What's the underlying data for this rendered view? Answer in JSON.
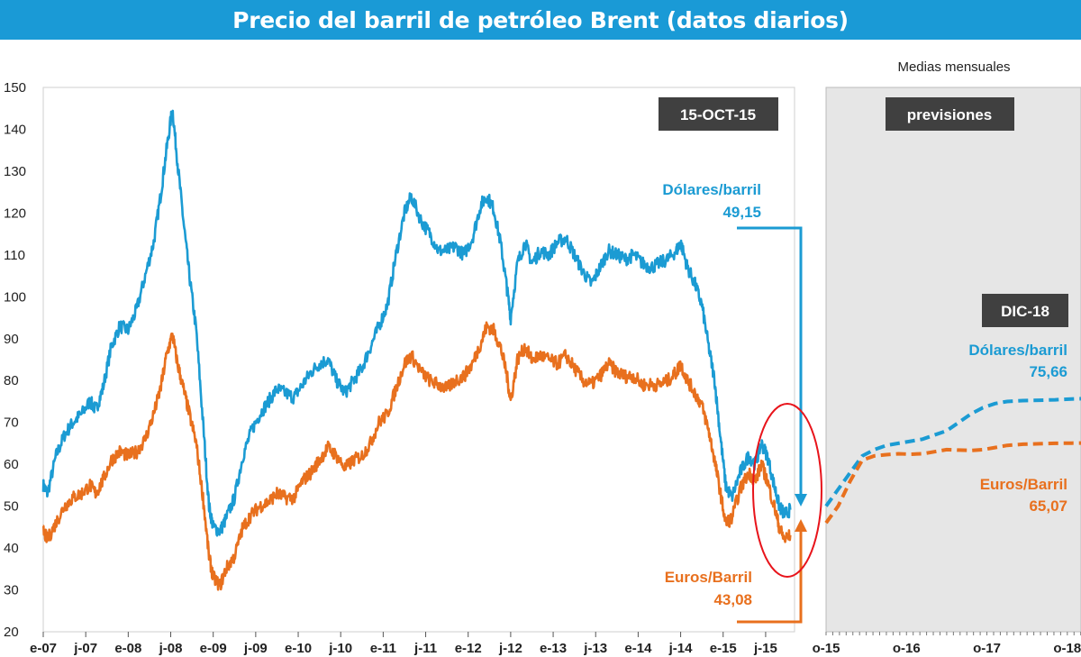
{
  "title": "Precio del barril de petróleo Brent (datos diarios)",
  "subtitle_right": "Medias mensuales",
  "date_badge": "15-OCT-15",
  "forecast_badge": "previsiones",
  "end_badge": "DIC-18",
  "colors": {
    "usd": "#1b9bd3",
    "eur": "#e8701e",
    "title_bg": "#1a9ad6",
    "badge_bg": "#404040",
    "forecast_bg": "#e6e6e6",
    "highlight": "#e8141b"
  },
  "labels": {
    "usd_name": "Dólares/barril",
    "usd_value": "49,15",
    "eur_name": "Euros/Barril",
    "eur_value": "43,08",
    "usd_forecast_name": "Dólares/barril",
    "usd_forecast_value": "75,66",
    "eur_forecast_name": "Euros/Barril",
    "eur_forecast_value": "65,07"
  },
  "chart_data": [
    {
      "type": "line",
      "title": "Precio del barril de petróleo Brent (datos diarios)",
      "ylim": [
        20,
        150
      ],
      "yticks": [
        20,
        30,
        40,
        50,
        60,
        70,
        80,
        90,
        100,
        110,
        120,
        130,
        140,
        150
      ],
      "xlim": [
        2007.0,
        2015.84
      ],
      "xticks": [
        {
          "label": "e-07",
          "x": 2007.0
        },
        {
          "label": "j-07",
          "x": 2007.5
        },
        {
          "label": "e-08",
          "x": 2008.0
        },
        {
          "label": "j-08",
          "x": 2008.5
        },
        {
          "label": "e-09",
          "x": 2009.0
        },
        {
          "label": "j-09",
          "x": 2009.5
        },
        {
          "label": "e-10",
          "x": 2010.0
        },
        {
          "label": "j-10",
          "x": 2010.5
        },
        {
          "label": "e-11",
          "x": 2011.0
        },
        {
          "label": "j-11",
          "x": 2011.5
        },
        {
          "label": "e-12",
          "x": 2012.0
        },
        {
          "label": "j-12",
          "x": 2012.5
        },
        {
          "label": "e-13",
          "x": 2013.0
        },
        {
          "label": "j-13",
          "x": 2013.5
        },
        {
          "label": "e-14",
          "x": 2014.0
        },
        {
          "label": "j-14",
          "x": 2014.5
        },
        {
          "label": "e-15",
          "x": 2015.0
        },
        {
          "label": "j-15",
          "x": 2015.5
        }
      ],
      "series": [
        {
          "name": "Dólares/barril",
          "x": [
            2007.0,
            2007.05,
            2007.15,
            2007.25,
            2007.35,
            2007.45,
            2007.55,
            2007.62,
            2007.7,
            2007.8,
            2007.9,
            2008.0,
            2008.1,
            2008.2,
            2008.3,
            2008.38,
            2008.45,
            2008.52,
            2008.58,
            2008.65,
            2008.72,
            2008.8,
            2008.88,
            2008.95,
            2009.0,
            2009.08,
            2009.15,
            2009.25,
            2009.35,
            2009.45,
            2009.55,
            2009.65,
            2009.75,
            2009.85,
            2009.95,
            2010.05,
            2010.15,
            2010.25,
            2010.35,
            2010.45,
            2010.55,
            2010.65,
            2010.75,
            2010.85,
            2010.95,
            2011.05,
            2011.15,
            2011.25,
            2011.33,
            2011.45,
            2011.55,
            2011.65,
            2011.75,
            2011.85,
            2011.95,
            2012.05,
            2012.15,
            2012.22,
            2012.3,
            2012.38,
            2012.45,
            2012.5,
            2012.58,
            2012.67,
            2012.75,
            2012.85,
            2012.95,
            2013.05,
            2013.15,
            2013.25,
            2013.35,
            2013.45,
            2013.55,
            2013.65,
            2013.75,
            2013.85,
            2013.95,
            2014.05,
            2014.15,
            2014.25,
            2014.35,
            2014.45,
            2014.5,
            2014.58,
            2014.67,
            2014.75,
            2014.83,
            2014.9,
            2014.96,
            2015.03,
            2015.1,
            2015.2,
            2015.3,
            2015.38,
            2015.45,
            2015.52,
            2015.6,
            2015.66,
            2015.72,
            2015.79
          ],
          "values": [
            55,
            53,
            62,
            67,
            70,
            72,
            75,
            73,
            78,
            88,
            93,
            92,
            97,
            105,
            113,
            124,
            135,
            145,
            132,
            118,
            105,
            92,
            70,
            50,
            45,
            44,
            47,
            52,
            62,
            68,
            72,
            75,
            78,
            77,
            76,
            79,
            82,
            84,
            85,
            80,
            77,
            80,
            83,
            88,
            93,
            98,
            110,
            120,
            124,
            118,
            115,
            111,
            111,
            112,
            110,
            114,
            122,
            124,
            121,
            113,
            103,
            95,
            108,
            113,
            108,
            111,
            110,
            113,
            114,
            110,
            106,
            103,
            107,
            111,
            110,
            109,
            110,
            108,
            107,
            108,
            109,
            111,
            113,
            107,
            103,
            98,
            88,
            80,
            68,
            55,
            52,
            58,
            62,
            60,
            65,
            62,
            55,
            50,
            48,
            49.15
          ]
        },
        {
          "name": "Euros/Barril",
          "x": [
            2007.0,
            2007.05,
            2007.15,
            2007.25,
            2007.35,
            2007.45,
            2007.55,
            2007.62,
            2007.7,
            2007.8,
            2007.9,
            2008.0,
            2008.1,
            2008.2,
            2008.3,
            2008.38,
            2008.45,
            2008.52,
            2008.58,
            2008.65,
            2008.72,
            2008.8,
            2008.88,
            2008.95,
            2009.0,
            2009.08,
            2009.15,
            2009.25,
            2009.35,
            2009.45,
            2009.55,
            2009.65,
            2009.75,
            2009.85,
            2009.95,
            2010.05,
            2010.15,
            2010.25,
            2010.35,
            2010.45,
            2010.55,
            2010.65,
            2010.75,
            2010.85,
            2010.95,
            2011.05,
            2011.15,
            2011.25,
            2011.33,
            2011.45,
            2011.55,
            2011.65,
            2011.75,
            2011.85,
            2011.95,
            2012.05,
            2012.15,
            2012.22,
            2012.3,
            2012.38,
            2012.45,
            2012.5,
            2012.58,
            2012.67,
            2012.75,
            2012.85,
            2012.95,
            2013.05,
            2013.15,
            2013.25,
            2013.35,
            2013.45,
            2013.55,
            2013.65,
            2013.75,
            2013.85,
            2013.95,
            2014.05,
            2014.15,
            2014.25,
            2014.35,
            2014.45,
            2014.5,
            2014.58,
            2014.67,
            2014.75,
            2014.83,
            2014.9,
            2014.96,
            2015.03,
            2015.1,
            2015.2,
            2015.3,
            2015.38,
            2015.45,
            2015.52,
            2015.6,
            2015.66,
            2015.72,
            2015.79
          ],
          "values": [
            44,
            42,
            46,
            50,
            52,
            53,
            55,
            53,
            56,
            61,
            63,
            62,
            63,
            66,
            72,
            78,
            86,
            91,
            84,
            78,
            72,
            65,
            52,
            38,
            33,
            31,
            35,
            38,
            45,
            48,
            50,
            51,
            53,
            52,
            52,
            56,
            58,
            61,
            64,
            62,
            59,
            61,
            62,
            65,
            70,
            72,
            78,
            84,
            86,
            82,
            80,
            79,
            78,
            80,
            81,
            84,
            89,
            93,
            92,
            88,
            82,
            75,
            85,
            88,
            85,
            86,
            85,
            84,
            86,
            83,
            80,
            79,
            81,
            84,
            82,
            81,
            81,
            79,
            79,
            79,
            80,
            82,
            84,
            80,
            77,
            74,
            68,
            61,
            54,
            46,
            47,
            54,
            58,
            56,
            60,
            56,
            50,
            45,
            42,
            43.08
          ]
        }
      ]
    },
    {
      "type": "line",
      "title": "Medias mensuales",
      "ylim": [
        20,
        150
      ],
      "xticks": [
        {
          "label": "o-15",
          "x": 2015.75
        },
        {
          "label": "o-16",
          "x": 2016.75
        },
        {
          "label": "o-17",
          "x": 2017.75
        },
        {
          "label": "o-18",
          "x": 2018.75
        }
      ],
      "xlim": [
        2015.75,
        2018.92
      ],
      "series": [
        {
          "name": "Dólares/barril",
          "x": [
            2015.75,
            2015.9,
            2016.05,
            2016.2,
            2016.35,
            2016.5,
            2016.65,
            2016.8,
            2016.95,
            2017.1,
            2017.25,
            2017.4,
            2017.55,
            2017.7,
            2017.85,
            2018.0,
            2018.2,
            2018.4,
            2018.6,
            2018.8,
            2018.92
          ],
          "values": [
            50,
            54,
            58,
            62,
            63.5,
            64.5,
            65,
            65.5,
            66,
            67,
            68,
            70,
            72,
            73.5,
            74.5,
            75,
            75.2,
            75.3,
            75.4,
            75.6,
            75.66
          ]
        },
        {
          "name": "Euros/Barril",
          "x": [
            2015.75,
            2015.9,
            2016.05,
            2016.2,
            2016.35,
            2016.5,
            2016.65,
            2016.8,
            2016.95,
            2017.1,
            2017.25,
            2017.4,
            2017.55,
            2017.7,
            2017.85,
            2018.0,
            2018.2,
            2018.4,
            2018.6,
            2018.8,
            2018.92
          ],
          "values": [
            46,
            50,
            56,
            61,
            62,
            62.3,
            62.5,
            62.4,
            62.5,
            63,
            63.5,
            63.4,
            63.3,
            63.5,
            64,
            64.5,
            64.8,
            64.9,
            65,
            65.05,
            65.07
          ]
        }
      ]
    }
  ]
}
